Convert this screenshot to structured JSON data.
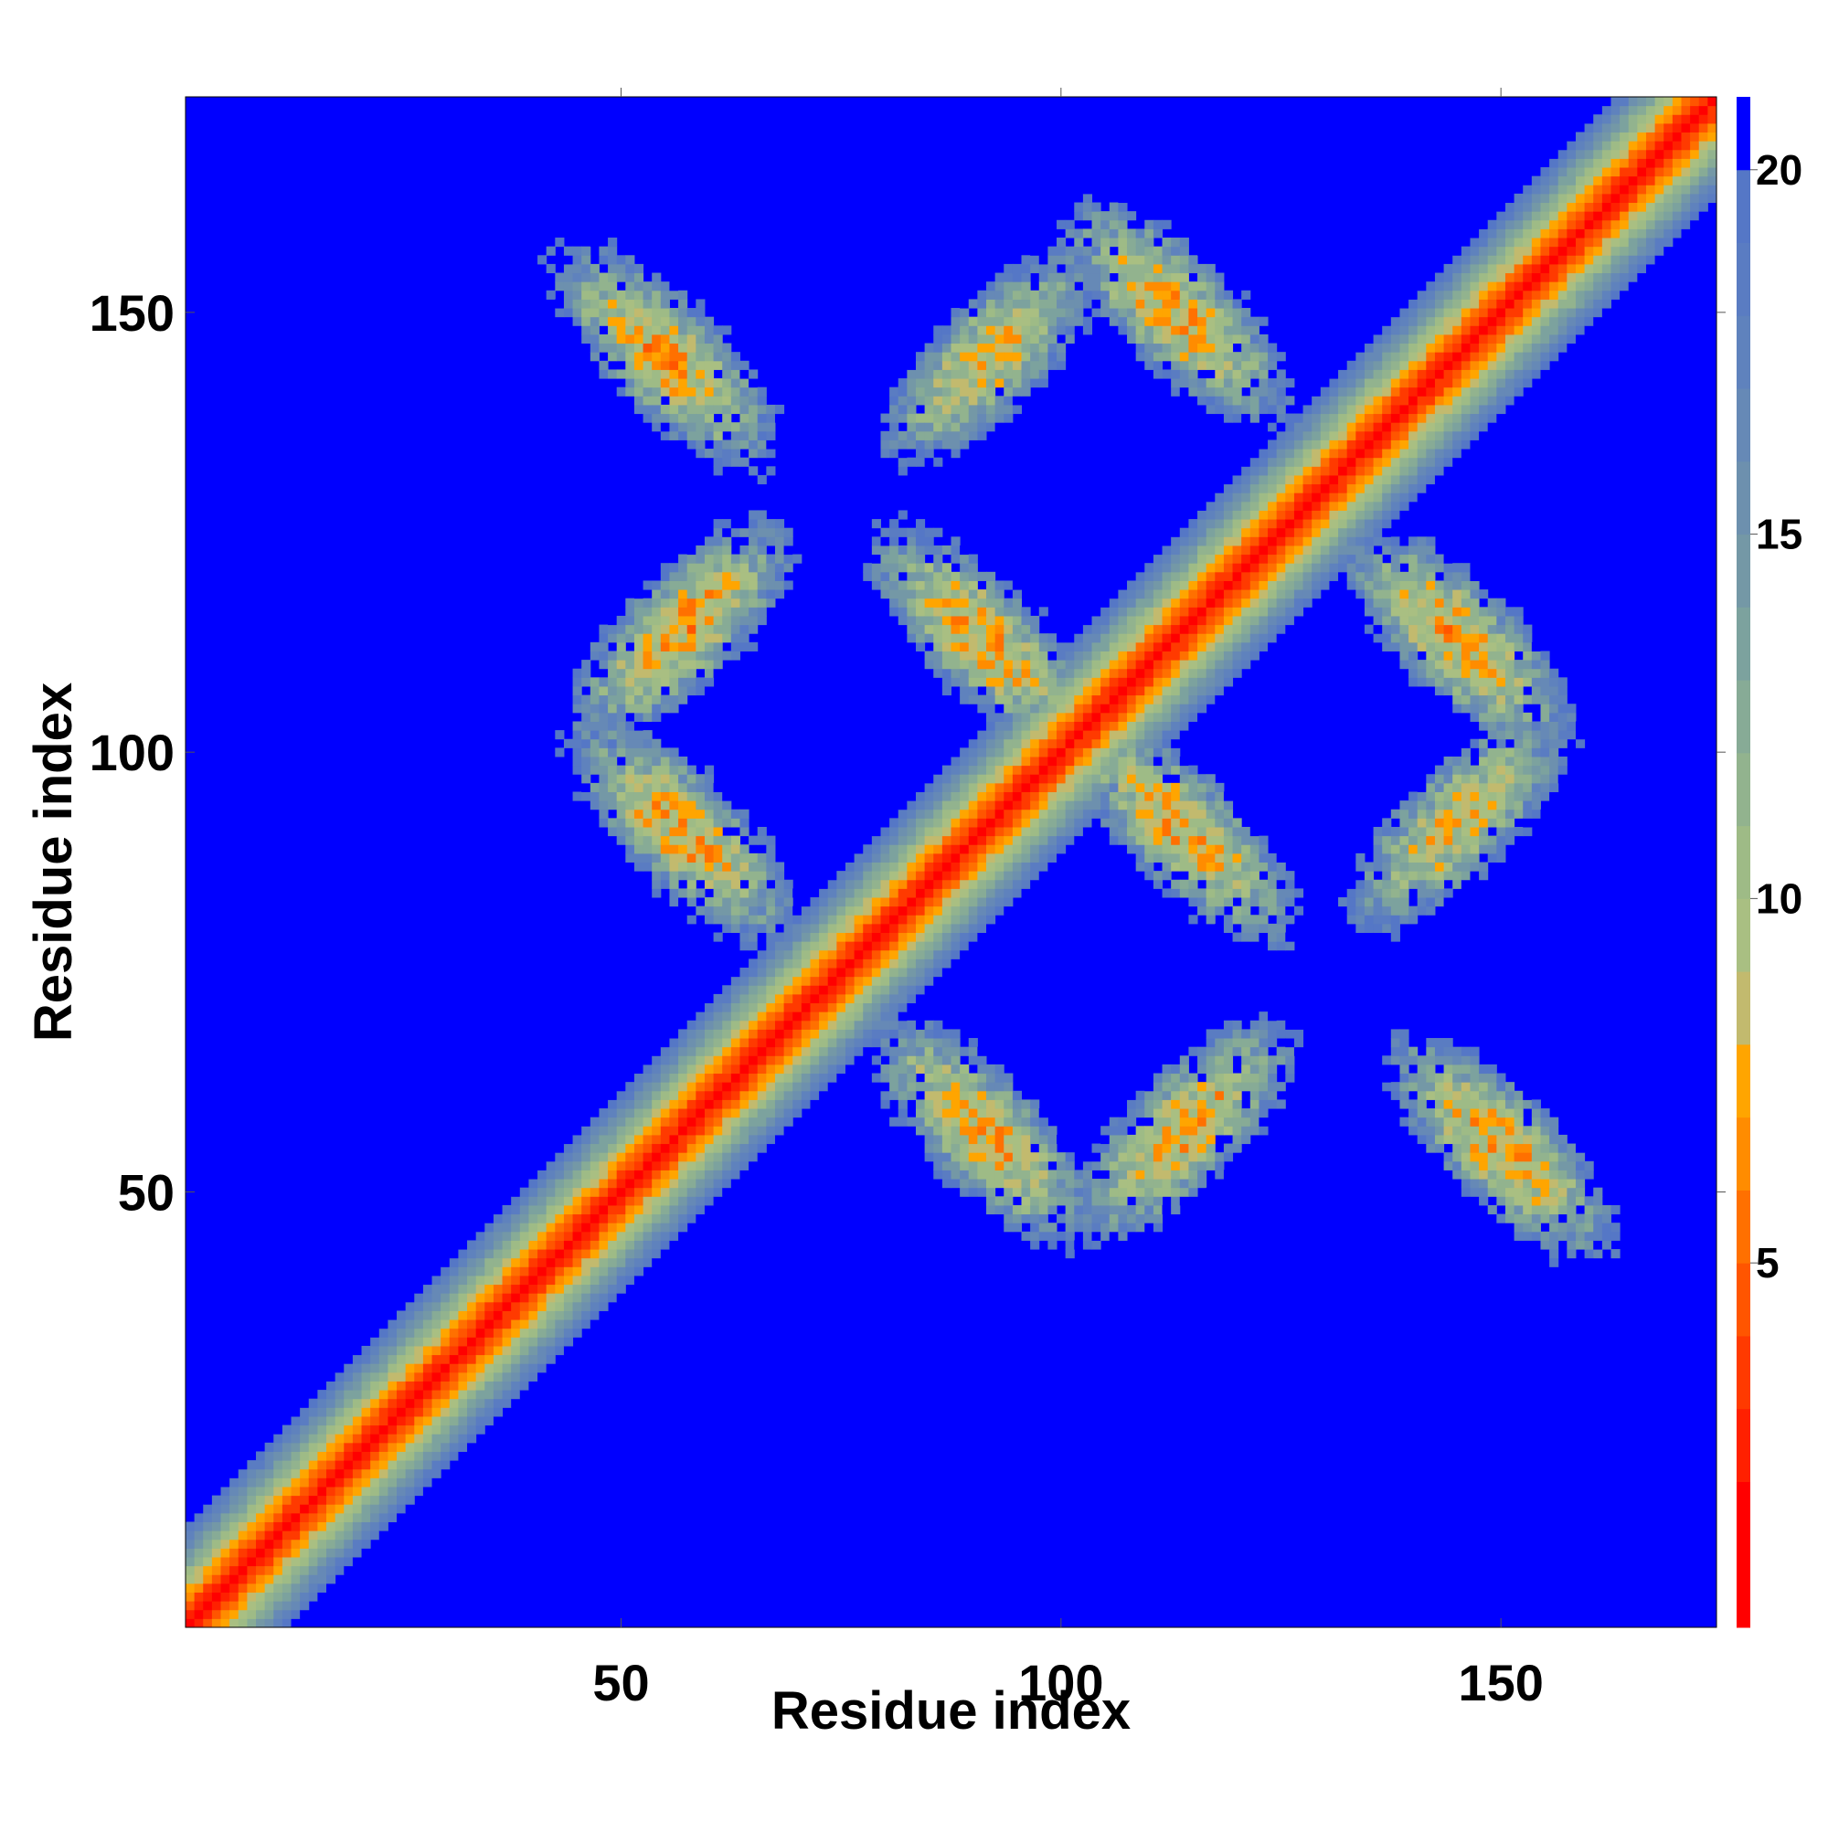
{
  "chart_data": {
    "type": "heatmap",
    "title": "",
    "xlabel": "Residue index",
    "ylabel": "Residue index",
    "xlim": [
      1,
      174
    ],
    "ylim": [
      1,
      174
    ],
    "x_ticks": [
      50,
      100,
      150
    ],
    "y_ticks": [
      50,
      100,
      150
    ],
    "x_tick_labels": [
      "50",
      "100",
      "150"
    ],
    "y_tick_labels": [
      "50",
      "100",
      "150"
    ],
    "colorbar": {
      "range": [
        0,
        21
      ],
      "ticks": [
        5,
        10,
        15,
        20
      ],
      "tick_labels": [
        "5",
        "10",
        "15",
        "20"
      ],
      "stops": [
        {
          "upper": 2,
          "color": "#ff0000"
        },
        {
          "upper": 3,
          "color": "#ff2000"
        },
        {
          "upper": 4,
          "color": "#ff3a00"
        },
        {
          "upper": 5,
          "color": "#ff5500"
        },
        {
          "upper": 6,
          "color": "#ff7000"
        },
        {
          "upper": 7,
          "color": "#ff8c00"
        },
        {
          "upper": 8,
          "color": "#ffa500"
        },
        {
          "upper": 9,
          "color": "#c2ba6e"
        },
        {
          "upper": 10,
          "color": "#a9bf82"
        },
        {
          "upper": 11,
          "color": "#9ebb86"
        },
        {
          "upper": 12,
          "color": "#92b38e"
        },
        {
          "upper": 13,
          "color": "#87ab96"
        },
        {
          "upper": 14,
          "color": "#7ca29e"
        },
        {
          "upper": 15,
          "color": "#7498a6"
        },
        {
          "upper": 16,
          "color": "#6d90ae"
        },
        {
          "upper": 17,
          "color": "#6689b6"
        },
        {
          "upper": 18,
          "color": "#5f82bd"
        },
        {
          "upper": 19,
          "color": "#5a7cc2"
        },
        {
          "upper": 20,
          "color": "#5577c6"
        },
        {
          "upper": 21,
          "color": "#0000ff"
        }
      ]
    },
    "structure": {
      "n_residues": 174,
      "diagonal_band": "distance increases from ~1 on the diagonal to >20 about 12 residues off-diagonal",
      "off_diagonal_contact_bands": [
        {
          "x_center": 55,
          "y_center": 145,
          "orientation": "anti-diagonal",
          "min_distance": 5
        },
        {
          "x_center": 57,
          "y_center": 91,
          "orientation": "anti-diagonal",
          "min_distance": 5
        },
        {
          "x_center": 57,
          "y_center": 114,
          "orientation": "parallel",
          "min_distance": 5
        },
        {
          "x_center": 92,
          "y_center": 145,
          "orientation": "parallel",
          "min_distance": 6
        },
        {
          "x_center": 113,
          "y_center": 150,
          "orientation": "anti-diagonal",
          "min_distance": 5
        },
        {
          "x_center": 91,
          "y_center": 113,
          "orientation": "anti-diagonal",
          "min_distance": 5
        },
        {
          "x_center": 114,
          "y_center": 91,
          "orientation": "anti-diagonal",
          "min_distance": 5
        },
        {
          "x_center": 145,
          "y_center": 113,
          "orientation": "anti-diagonal",
          "min_distance": 5
        },
        {
          "x_center": 145,
          "y_center": 92,
          "orientation": "parallel",
          "min_distance": 6
        },
        {
          "x_center": 91,
          "y_center": 57,
          "orientation": "anti-diagonal",
          "min_distance": 5
        },
        {
          "x_center": 114,
          "y_center": 57,
          "orientation": "parallel",
          "min_distance": 5
        },
        {
          "x_center": 150,
          "y_center": 55,
          "orientation": "anti-diagonal",
          "min_distance": 5
        }
      ]
    }
  }
}
